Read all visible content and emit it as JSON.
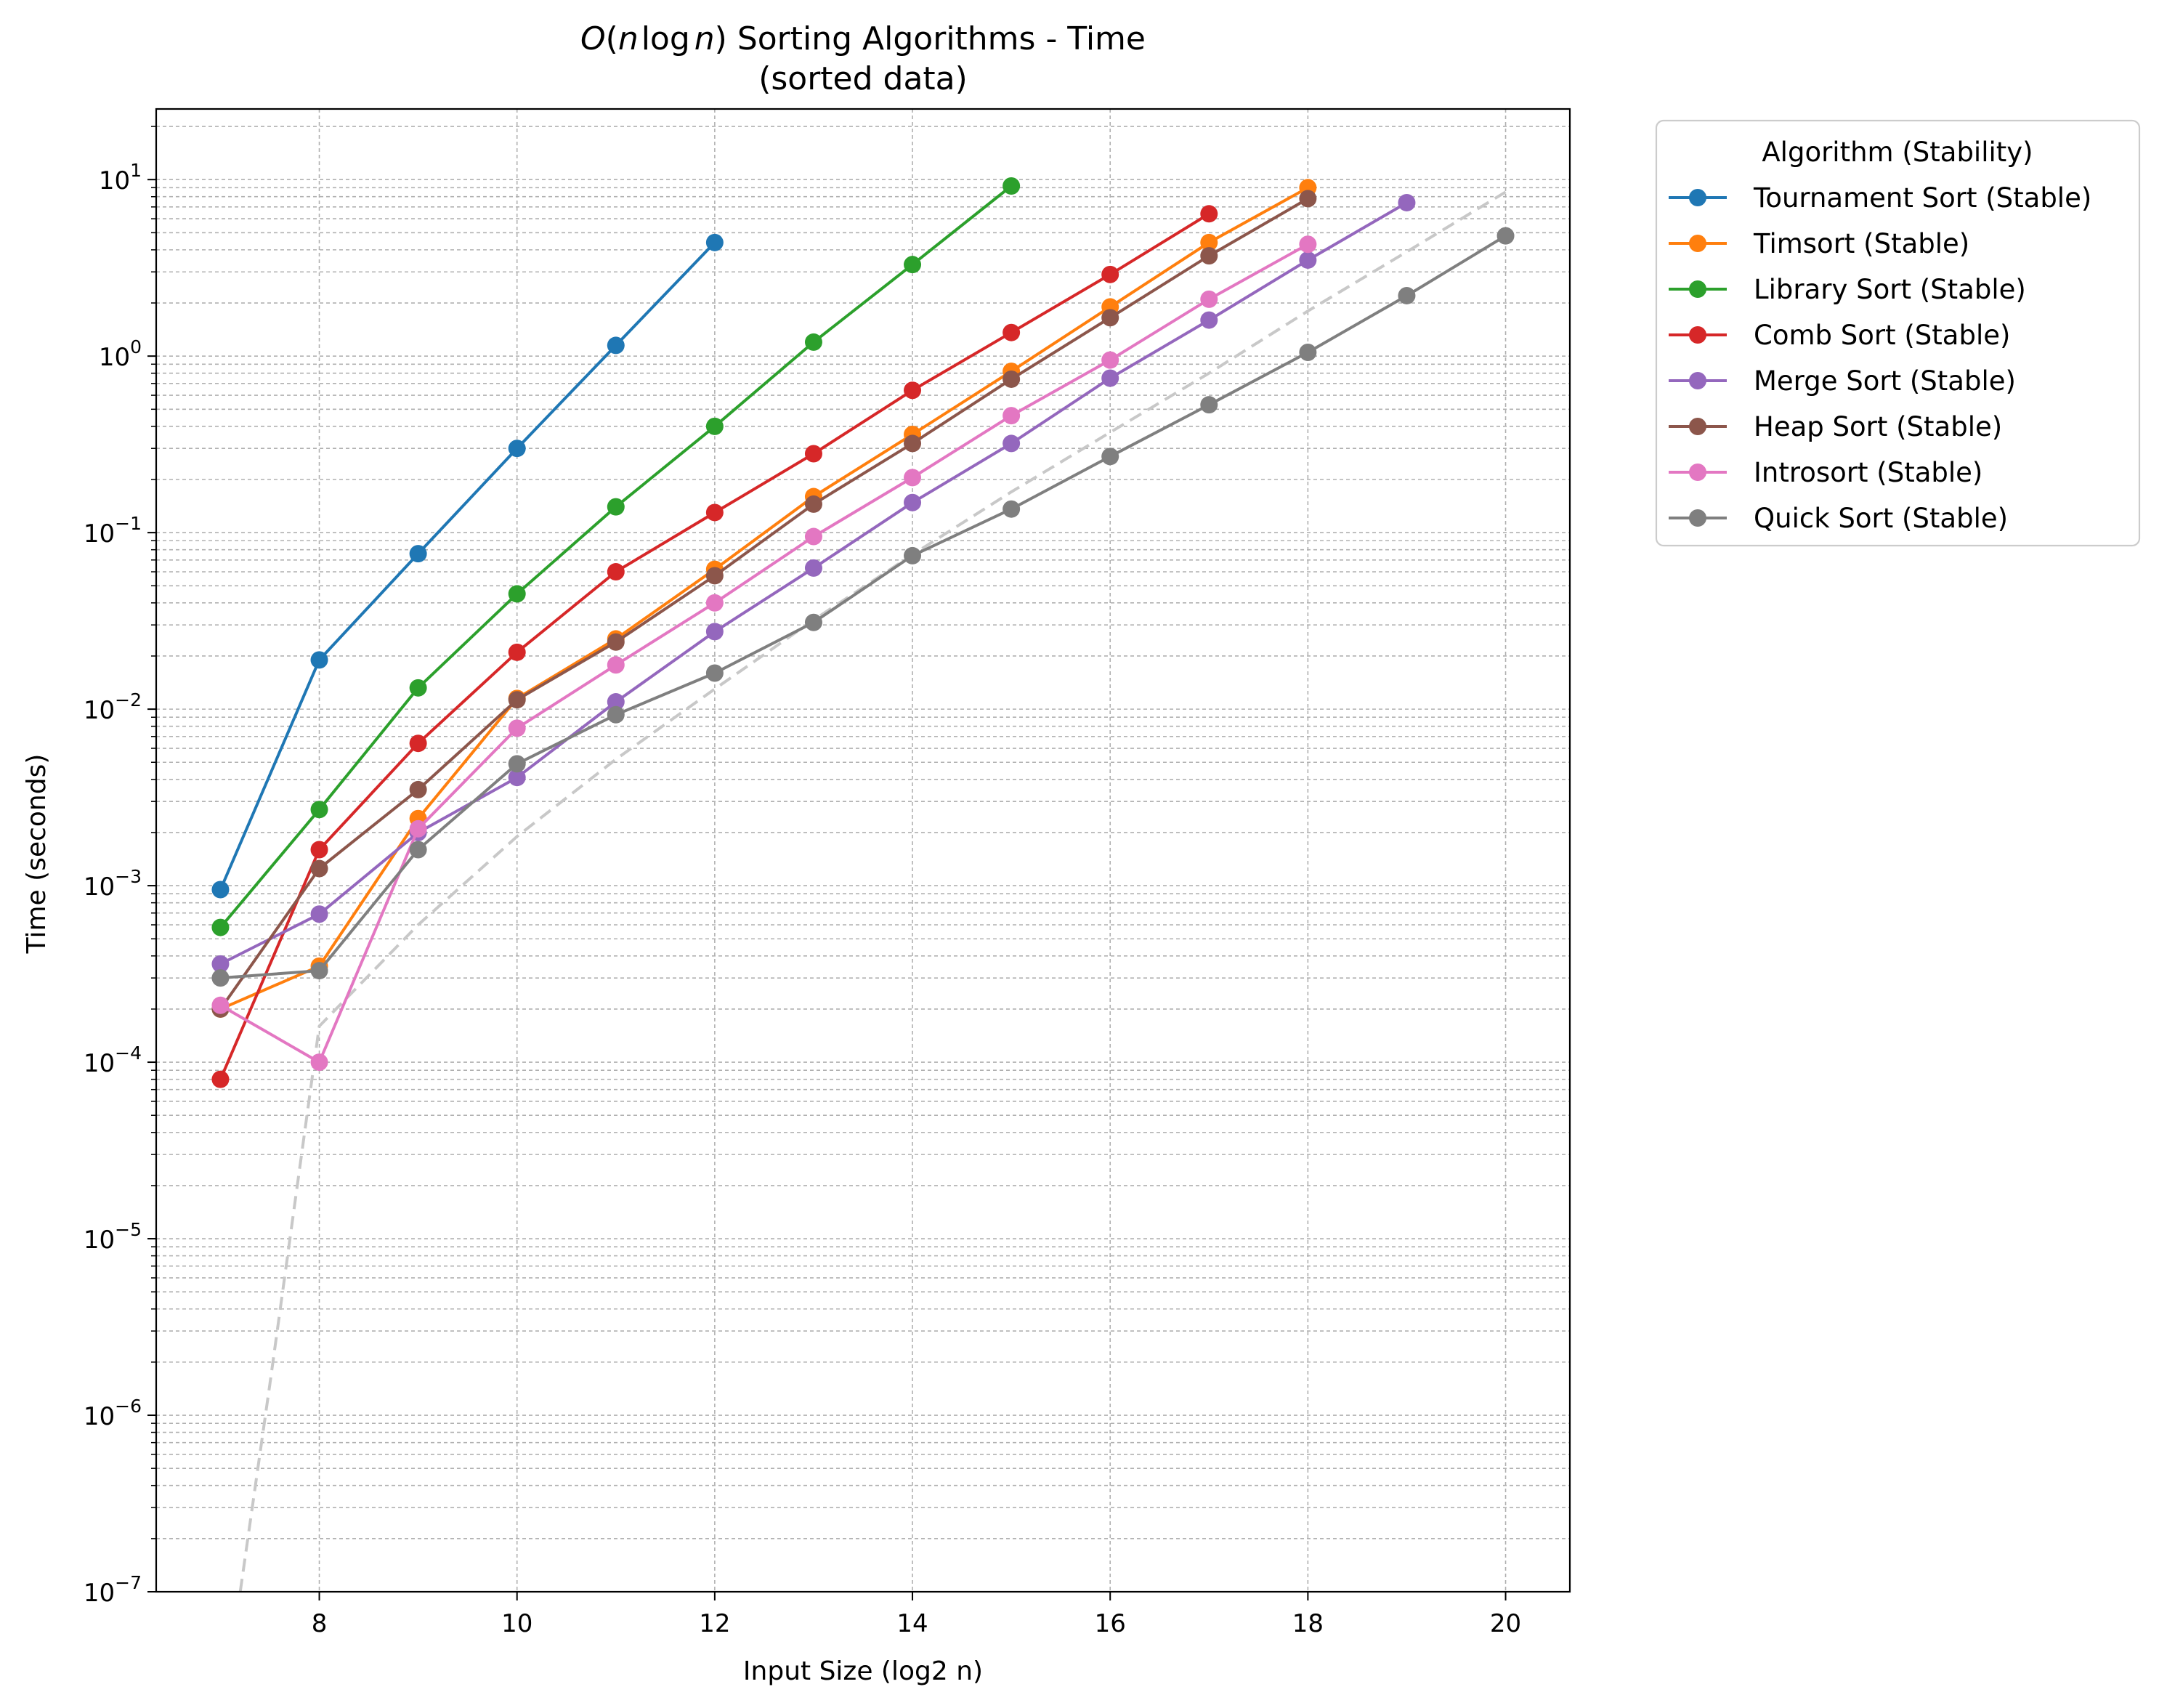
{
  "chart_data": {
    "type": "line",
    "title_parts": {
      "big_o": "O",
      "paren_open": "(",
      "n1": "n",
      "log": "log",
      "n2": "n",
      "paren_close": ")",
      "rest": " Sorting Algorithms - Time"
    },
    "subtitle": "(sorted data)",
    "xlabel": "Input Size (log2 n)",
    "ylabel": "Time (seconds)",
    "xlim": [
      6.35,
      20.65
    ],
    "ylim_log10": [
      -7,
      1.4
    ],
    "y_scale": "log",
    "x_ticks": [
      "8",
      "10",
      "12",
      "14",
      "16",
      "18",
      "20"
    ],
    "x_tick_values": [
      8,
      10,
      12,
      14,
      16,
      18,
      20
    ],
    "y_tick_exponents": [
      "1",
      "0",
      "−1",
      "−2",
      "−3",
      "−4",
      "−5",
      "−6",
      "−7"
    ],
    "y_tick_base": "10",
    "grid": true,
    "legend": {
      "title": "Algorithm (Stability)",
      "placement": "outside-top-right"
    },
    "reference_curve": {
      "style": "dashed",
      "color": "#c8c8c8",
      "x": [
        7.2,
        7.5,
        8,
        9,
        10,
        11,
        12,
        13,
        14,
        15,
        16,
        17,
        18,
        19,
        20
      ],
      "y": [
        1e-07,
        1.5e-06,
        0.00016,
        0.0006,
        0.0019,
        0.0052,
        0.013,
        0.032,
        0.075,
        0.17,
        0.37,
        0.8,
        1.8,
        3.9,
        8.5
      ]
    },
    "series": [
      {
        "name": "Tournament Sort (Stable)",
        "color": "#1f77b4",
        "x": [
          7,
          8,
          9,
          10,
          11,
          12
        ],
        "y": [
          0.00095,
          0.019,
          0.076,
          0.3,
          1.15,
          4.4
        ]
      },
      {
        "name": "Timsort (Stable)",
        "color": "#ff7f0e",
        "x": [
          7,
          8,
          9,
          10,
          11,
          12,
          13,
          14,
          15,
          16,
          17,
          18
        ],
        "y": [
          0.0002,
          0.00035,
          0.0024,
          0.0115,
          0.025,
          0.062,
          0.16,
          0.36,
          0.82,
          1.9,
          4.4,
          9.0
        ]
      },
      {
        "name": "Library Sort (Stable)",
        "color": "#2ca02c",
        "x": [
          7,
          8,
          9,
          10,
          11,
          12,
          13,
          14,
          15
        ],
        "y": [
          0.00058,
          0.0027,
          0.0132,
          0.045,
          0.14,
          0.4,
          1.2,
          3.3,
          9.2
        ]
      },
      {
        "name": "Comb Sort (Stable)",
        "color": "#d62728",
        "x": [
          7,
          8,
          9,
          10,
          11,
          12,
          13,
          14,
          15,
          16,
          17
        ],
        "y": [
          8e-05,
          0.0016,
          0.0064,
          0.021,
          0.06,
          0.13,
          0.28,
          0.64,
          1.36,
          2.9,
          6.4
        ]
      },
      {
        "name": "Merge Sort (Stable)",
        "color": "#9467bd",
        "x": [
          7,
          8,
          9,
          10,
          11,
          12,
          13,
          14,
          15,
          16,
          17,
          18,
          19
        ],
        "y": [
          0.00036,
          0.00069,
          0.002,
          0.0041,
          0.011,
          0.0275,
          0.063,
          0.148,
          0.32,
          0.75,
          1.6,
          3.5,
          7.4
        ]
      },
      {
        "name": "Heap Sort (Stable)",
        "color": "#8c564b",
        "x": [
          7,
          8,
          9,
          10,
          11,
          12,
          13,
          14,
          15,
          16,
          17,
          18
        ],
        "y": [
          0.0002,
          0.00125,
          0.0035,
          0.0113,
          0.024,
          0.057,
          0.145,
          0.32,
          0.74,
          1.65,
          3.7,
          7.8
        ]
      },
      {
        "name": "Introsort (Stable)",
        "color": "#e377c2",
        "x": [
          7,
          8,
          9,
          10,
          11,
          12,
          13,
          14,
          15,
          16,
          17,
          18
        ],
        "y": [
          0.00021,
          0.0001,
          0.0021,
          0.0078,
          0.0178,
          0.04,
          0.095,
          0.205,
          0.46,
          0.95,
          2.1,
          4.3
        ]
      },
      {
        "name": "Quick Sort (Stable)",
        "color": "#7f7f7f",
        "x": [
          7,
          8,
          9,
          10,
          11,
          12,
          13,
          14,
          15,
          16,
          17,
          18,
          19,
          20
        ],
        "y": [
          0.0003,
          0.00033,
          0.0016,
          0.0049,
          0.0093,
          0.016,
          0.031,
          0.074,
          0.136,
          0.27,
          0.53,
          1.05,
          2.2,
          4.8
        ]
      }
    ]
  }
}
